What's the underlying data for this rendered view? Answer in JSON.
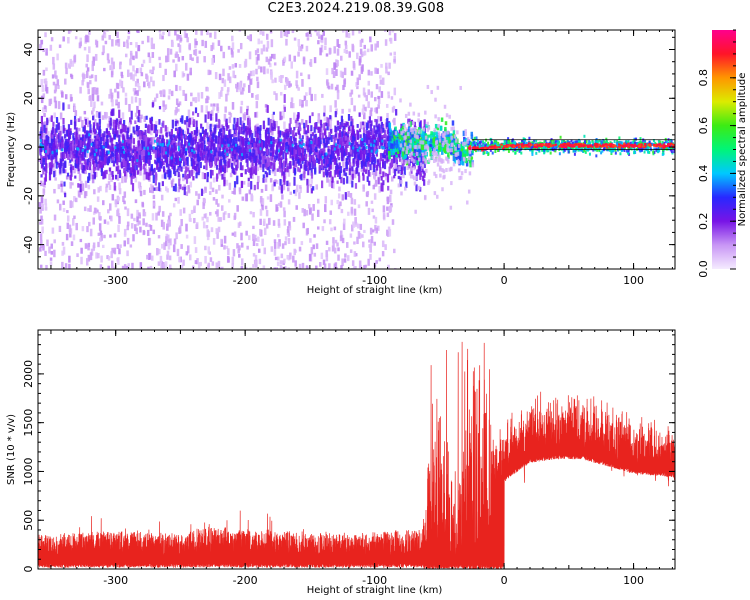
{
  "title": "C2E3.2024.219.08.39.G08",
  "chart_data": [
    {
      "type": "heatmap",
      "title": "",
      "xlabel": "Height of straight line (km)",
      "ylabel": "Frequency (Hz)",
      "xlim": [
        -360,
        132
      ],
      "ylim": [
        -50,
        48
      ],
      "xticks": [
        -300,
        -200,
        -100,
        0,
        100
      ],
      "yticks": [
        -40,
        -20,
        0,
        20,
        40
      ],
      "colorbar": {
        "label": "Normalized spectral amplitude",
        "ticks": [
          0.0,
          0.2,
          0.4,
          0.6,
          0.8
        ],
        "range": [
          0,
          1
        ]
      },
      "description_points": [
        {
          "x": -300,
          "freq_center": 0,
          "spread": 45
        },
        {
          "x": -90,
          "freq_center": 2,
          "spread": 25
        },
        {
          "x": -60,
          "freq_center": 4,
          "amplitude": 0.55
        },
        {
          "x": -20,
          "freq_center": 0,
          "amplitude": 0.9
        },
        {
          "x": 50,
          "freq_center": 1,
          "amplitude": 0.95
        },
        {
          "x": 120,
          "freq_center": 1,
          "amplitude": 0.95
        }
      ]
    },
    {
      "type": "line",
      "title": "",
      "xlabel": "Height of straight line (km)",
      "ylabel": "SNR (10 * v/v)",
      "xlim": [
        -360,
        132
      ],
      "ylim": [
        0,
        2450
      ],
      "xticks": [
        -300,
        -200,
        -100,
        0,
        100
      ],
      "yticks": [
        0,
        500,
        1000,
        1500,
        2000
      ],
      "color": "#e8231e",
      "envelope": {
        "x": [
          -360,
          -300,
          -250,
          -225,
          -200,
          -150,
          -100,
          -62,
          -55,
          -45,
          -35,
          -25,
          -15,
          -10,
          0,
          20,
          40,
          60,
          80,
          100,
          132
        ],
        "y": [
          250,
          280,
          260,
          320,
          290,
          260,
          270,
          300,
          1200,
          900,
          500,
          1200,
          1300,
          1100,
          1200,
          1450,
          1500,
          1500,
          1400,
          1300,
          1250
        ]
      }
    }
  ]
}
